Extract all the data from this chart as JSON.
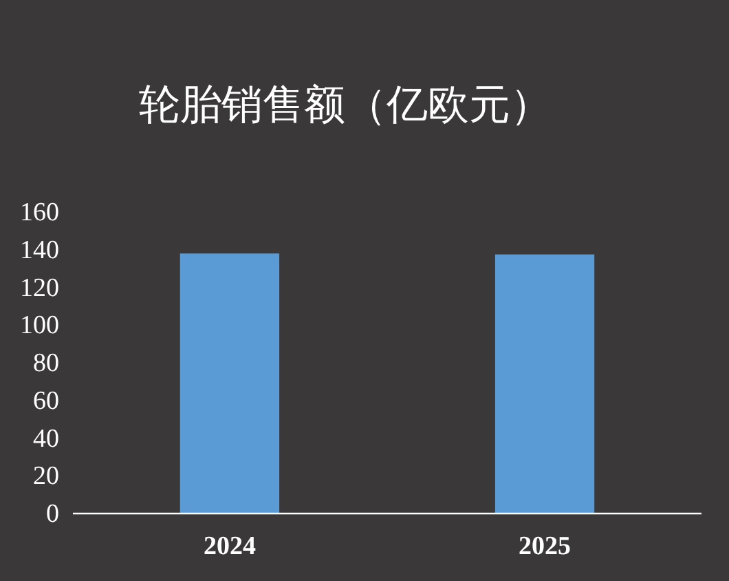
{
  "chart_data": {
    "type": "bar",
    "title": "轮胎销售额（亿欧元）",
    "categories": [
      "2024",
      "2025"
    ],
    "values": [
      138,
      137.5
    ],
    "color": "#5b9bd5",
    "ylim": [
      0,
      160
    ],
    "yticks": [
      0,
      20,
      40,
      60,
      80,
      100,
      120,
      140,
      160
    ],
    "grid": false
  }
}
